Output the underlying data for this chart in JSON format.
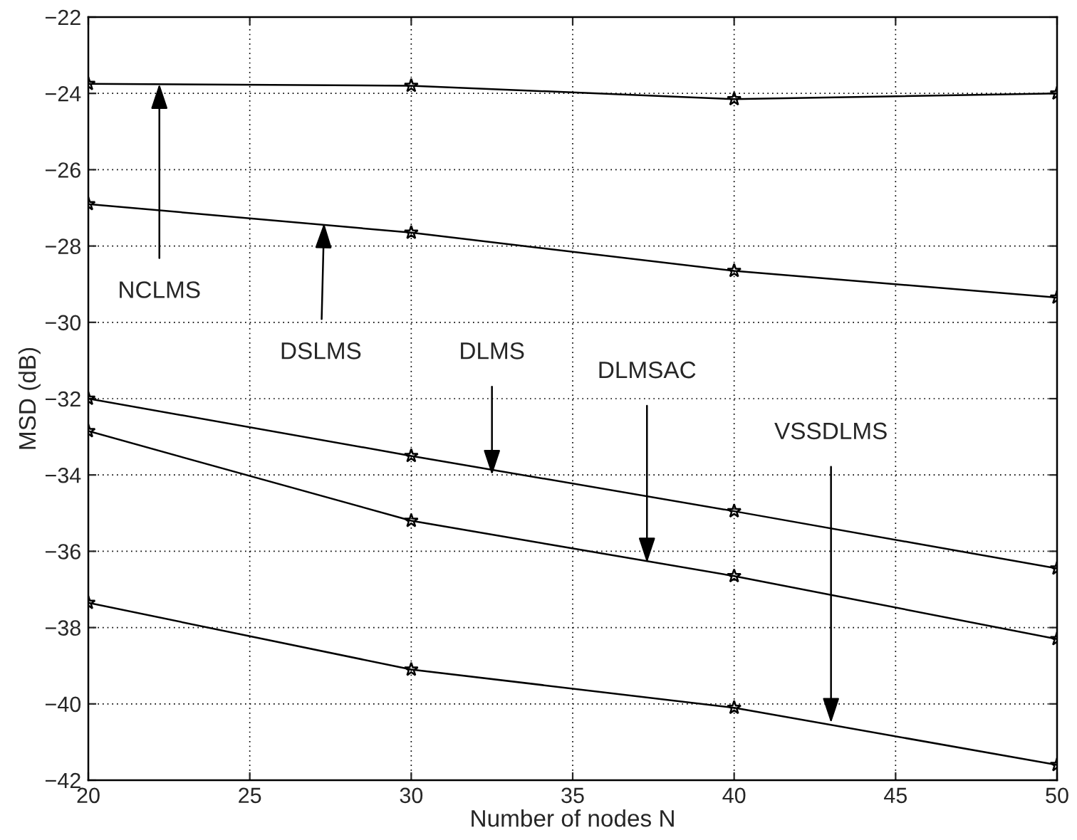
{
  "chart_data": {
    "type": "line",
    "xlabel": "Number of nodes N",
    "ylabel": "MSD (dB)",
    "x": [
      20,
      30,
      40,
      50
    ],
    "series": [
      {
        "color": "#000000",
        "values": [
          -23.75,
          -23.8,
          -24.15,
          -24.0
        ]
      },
      {
        "color": "#000000",
        "values": [
          -26.9,
          -27.65,
          -28.65,
          -29.35
        ]
      },
      {
        "color": "#000000",
        "values": [
          -32.0,
          -33.5,
          -34.95,
          -36.45
        ]
      },
      {
        "color": "#000000",
        "values": [
          -32.85,
          -35.2,
          -36.65,
          -38.3
        ]
      },
      {
        "color": "#000000",
        "values": [
          -37.35,
          -39.1,
          -40.1,
          -41.6
        ]
      }
    ],
    "annotations": [
      {
        "text": "NCLMS",
        "x": 22.2,
        "y": -23.75
      },
      {
        "text": "DSLMS",
        "x": 27.3,
        "y": -27.4
      },
      {
        "text": "DLMS",
        "x": 32.5,
        "y": -34.0
      },
      {
        "text": "DLMSAC",
        "x": 37.3,
        "y": -36.3
      },
      {
        "text": "VSSDLMS",
        "x": 43.0,
        "y": -40.5
      }
    ],
    "xlim": [
      20,
      50
    ],
    "xticks": [
      20,
      25,
      30,
      35,
      40,
      45,
      50
    ],
    "ylim": [
      -42,
      -22
    ],
    "yticks": [
      -42,
      -40,
      -38,
      -36,
      -34,
      -32,
      -30,
      -28,
      -26,
      -24,
      -22
    ],
    "grid": true,
    "marker": "star",
    "line_style": "solid",
    "legend": false
  }
}
